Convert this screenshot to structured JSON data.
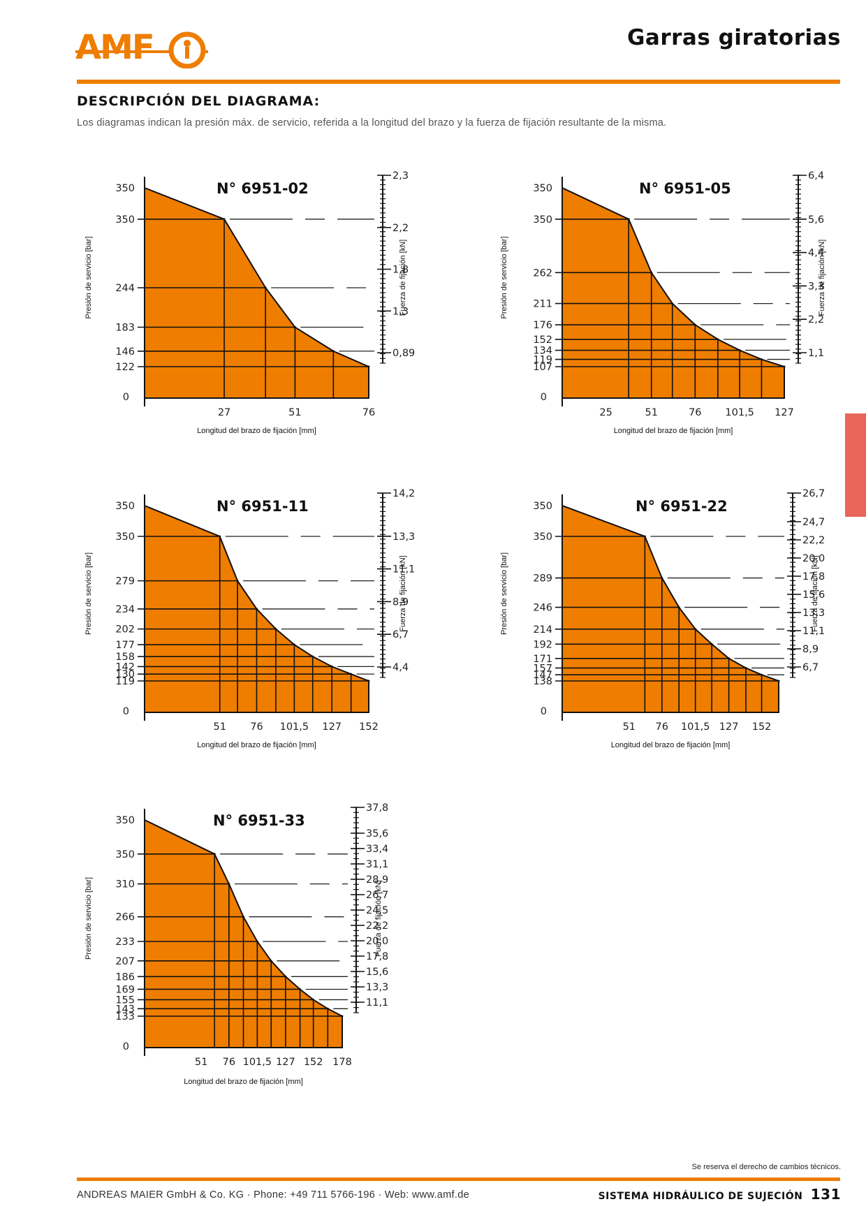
{
  "header": {
    "logo_text": "AMF",
    "title": "Garras giratorias",
    "section_title": "DESCRIPCIÓN DEL DIAGRAMA:",
    "intro": "Los diagramas indican la presión máx. de servicio, referida a la longitud del brazo y la fuerza de fijación resultante de la misma."
  },
  "colors": {
    "accent": "#ee7d00",
    "fill": "#ee7d00",
    "side_tab": "#e8675a"
  },
  "chart_data": [
    {
      "type": "area",
      "title": "N° 6951-02",
      "xlabel": "Longitud del brazo de fijación [mm]",
      "ylabel": "Presión de servicio [bar]",
      "y2label": "Fuerza de fijación [kN]",
      "origin_label": "0",
      "x_ticks": [
        "27",
        "51",
        "76"
      ],
      "y_ticks": [
        "350",
        "350",
        "244",
        "183",
        "146",
        "122"
      ],
      "y2_ticks": [
        "2,3",
        "2,2",
        "1,8",
        "1,3",
        "0,89"
      ],
      "points": [
        {
          "x": 0,
          "y": 350
        },
        {
          "x": 27,
          "y": 350
        },
        {
          "x": 41,
          "y": 244
        },
        {
          "x": 51,
          "y": 183
        },
        {
          "x": 64,
          "y": 146
        },
        {
          "x": 76,
          "y": 122
        }
      ]
    },
    {
      "type": "area",
      "title": "N° 6951-05",
      "xlabel": "Longitud del brazo de fijación [mm]",
      "ylabel": "Presión de servicio [bar]",
      "y2label": "Fuerza de fijación [kN]",
      "origin_label": "0",
      "x_ticks": [
        "25",
        "51",
        "76",
        "101,5",
        "127"
      ],
      "y_ticks": [
        "350",
        "350",
        "262",
        "211",
        "176",
        "152",
        "134",
        "119",
        "107"
      ],
      "y2_ticks": [
        "6,4",
        "5,6",
        "4,4",
        "3,3",
        "2,2",
        "1,1"
      ],
      "points": [
        {
          "x": 0,
          "y": 350
        },
        {
          "x": 38,
          "y": 350
        },
        {
          "x": 51,
          "y": 262
        },
        {
          "x": 63,
          "y": 211
        },
        {
          "x": 76,
          "y": 176
        },
        {
          "x": 89,
          "y": 152
        },
        {
          "x": 101.5,
          "y": 134
        },
        {
          "x": 114,
          "y": 119
        },
        {
          "x": 127,
          "y": 107
        }
      ]
    },
    {
      "type": "area",
      "title": "N° 6951-11",
      "xlabel": "Longitud del brazo de fijación [mm]",
      "ylabel": "Presión de servicio [bar]",
      "y2label": "Fuerza de fijación [kN]",
      "origin_label": "0",
      "x_ticks": [
        "51",
        "76",
        "101,5",
        "127",
        "152"
      ],
      "y_ticks": [
        "350",
        "350",
        "279",
        "234",
        "202",
        "177",
        "158",
        "142",
        "130",
        "119"
      ],
      "y2_ticks": [
        "14,2",
        "13,3",
        "11,1",
        "8,9",
        "6,7",
        "4,4"
      ],
      "points": [
        {
          "x": 0,
          "y": 350
        },
        {
          "x": 51,
          "y": 350
        },
        {
          "x": 63,
          "y": 279
        },
        {
          "x": 76,
          "y": 234
        },
        {
          "x": 89,
          "y": 202
        },
        {
          "x": 101.5,
          "y": 177
        },
        {
          "x": 114,
          "y": 158
        },
        {
          "x": 127,
          "y": 142
        },
        {
          "x": 140,
          "y": 130
        },
        {
          "x": 152,
          "y": 119
        }
      ]
    },
    {
      "type": "area",
      "title": "N° 6951-22",
      "xlabel": "Longitud del brazo de fijación [mm]",
      "ylabel": "Presión de servicio [bar]",
      "y2label": "Fuerza de fijación [kN]",
      "origin_label": "0",
      "x_ticks": [
        "51",
        "76",
        "101,5",
        "127",
        "152"
      ],
      "y_ticks": [
        "350",
        "350",
        "289",
        "246",
        "214",
        "192",
        "171",
        "157",
        "147",
        "138"
      ],
      "y2_ticks": [
        "26,7",
        "24,7",
        "22,2",
        "20,0",
        "17,8",
        "15,6",
        "13,3",
        "11,1",
        "8,9",
        "6,7"
      ],
      "points": [
        {
          "x": 0,
          "y": 350
        },
        {
          "x": 63,
          "y": 350
        },
        {
          "x": 76,
          "y": 289
        },
        {
          "x": 89,
          "y": 246
        },
        {
          "x": 101.5,
          "y": 214
        },
        {
          "x": 114,
          "y": 192
        },
        {
          "x": 127,
          "y": 171
        },
        {
          "x": 140,
          "y": 157
        },
        {
          "x": 152,
          "y": 147
        },
        {
          "x": 165,
          "y": 138
        }
      ]
    },
    {
      "type": "area",
      "title": "N° 6951-33",
      "xlabel": "Longitud del brazo de fijación [mm]",
      "ylabel": "Presión de servicio [bar]",
      "y2label": "Fuerza de fijación [kN]",
      "origin_label": "0",
      "x_ticks": [
        "51",
        "76",
        "101,5",
        "127",
        "152",
        "178"
      ],
      "y_ticks": [
        "350",
        "350",
        "310",
        "266",
        "233",
        "207",
        "186",
        "169",
        "155",
        "143",
        "133"
      ],
      "y2_ticks": [
        "37,8",
        "35,6",
        "33,4",
        "31,1",
        "28,9",
        "26,7",
        "24,5",
        "22,2",
        "20,0",
        "17,8",
        "15,6",
        "13,3",
        "11,1"
      ],
      "points": [
        {
          "x": 0,
          "y": 350
        },
        {
          "x": 63,
          "y": 350
        },
        {
          "x": 76,
          "y": 310
        },
        {
          "x": 89,
          "y": 266
        },
        {
          "x": 101.5,
          "y": 233
        },
        {
          "x": 114,
          "y": 207
        },
        {
          "x": 127,
          "y": 186
        },
        {
          "x": 140,
          "y": 169
        },
        {
          "x": 152,
          "y": 155
        },
        {
          "x": 165,
          "y": 143
        },
        {
          "x": 178,
          "y": 133
        }
      ]
    }
  ],
  "footer": {
    "note": "Se reserva el derecho de cambios técnicos.",
    "company": "ANDREAS MAIER GmbH & Co. KG · Phone: +49 711 5766-196 · Web: www.amf.de",
    "section": "SISTEMA HIDRÁULICO DE SUJECIÓN",
    "page": "131"
  }
}
